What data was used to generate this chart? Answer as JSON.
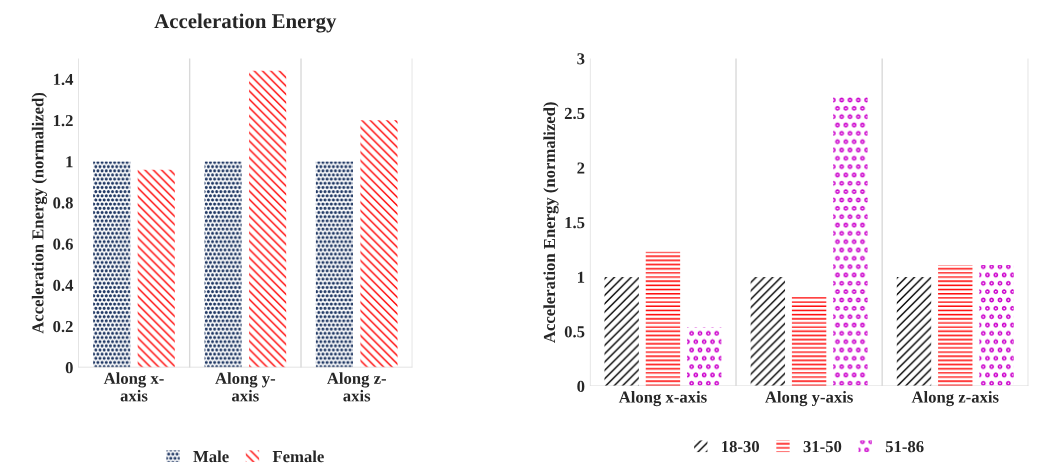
{
  "chart_data": [
    {
      "type": "bar",
      "title": "Acceleration Energy",
      "ylabel": "Acceleration Energy (normalized)",
      "categories": [
        "Along x-\naxis",
        "Along y-\naxis",
        "Along z-\naxis"
      ],
      "series": [
        {
          "name": "Male",
          "color": "#203864",
          "values": [
            1,
            1,
            1
          ]
        },
        {
          "name": "Female",
          "color": "#ff0000",
          "values": [
            0.96,
            1.44,
            1.2
          ]
        }
      ],
      "ylim": [
        0,
        1.5
      ],
      "yticks": [
        0,
        0.2,
        0.4,
        0.6,
        0.8,
        1,
        1.2,
        1.4
      ],
      "grid": "x",
      "legend": "bottom"
    },
    {
      "type": "bar",
      "ylabel": "Acceleration Energy (normalized)",
      "categories": [
        "Along x-axis",
        "Along y-axis",
        "Along z-axis"
      ],
      "series": [
        {
          "name": "18-30",
          "color": "#000000",
          "values": [
            1,
            1,
            1
          ]
        },
        {
          "name": "31-50",
          "color": "#ff0000",
          "values": [
            1.23,
            0.82,
            1.11
          ]
        },
        {
          "name": "51-86",
          "color": "#cc00cc",
          "values": [
            0.54,
            2.67,
            1.11
          ]
        }
      ],
      "ylim": [
        0,
        3
      ],
      "yticks": [
        0,
        0.5,
        1,
        1.5,
        2,
        2.5,
        3
      ],
      "grid": "x",
      "legend": "bottom"
    }
  ]
}
